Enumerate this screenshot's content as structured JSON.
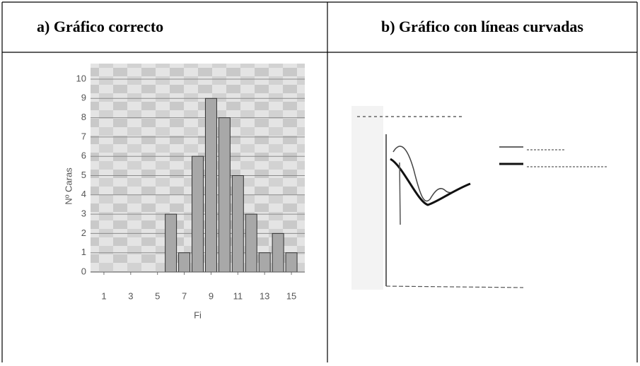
{
  "table": {
    "headers": [
      "a) Gráfico correcto",
      "b) Gráfico con líneas curvadas"
    ]
  },
  "chart_data": {
    "type": "bar",
    "x": [
      6,
      7,
      8,
      9,
      10,
      11,
      12,
      13,
      14,
      15
    ],
    "values": [
      3,
      1,
      6,
      9,
      8,
      5,
      3,
      1,
      2,
      1
    ],
    "xlim": [
      0,
      16
    ],
    "xticks": [
      1,
      3,
      5,
      7,
      9,
      11,
      13,
      15
    ],
    "ylim": [
      0,
      10
    ],
    "yticks": [
      0,
      1,
      2,
      3,
      4,
      5,
      6,
      7,
      8,
      9,
      10
    ],
    "x_label": "Fi",
    "y_label": "Nº Caras",
    "color": "#a8a8a8"
  }
}
